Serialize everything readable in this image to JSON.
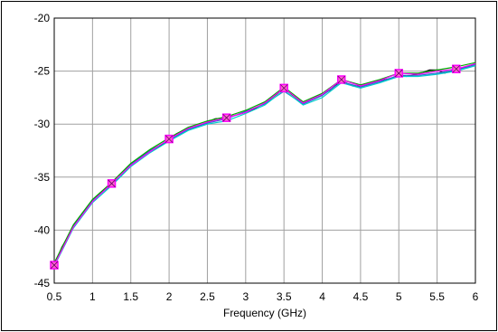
{
  "chart_data": {
    "type": "line",
    "xlabel": "Frequency (GHz)",
    "ylabel": "",
    "xlim": [
      0.5,
      6
    ],
    "ylim": [
      -45,
      -20
    ],
    "xticks": [
      "0.5",
      "1",
      "1.5",
      "2",
      "2.5",
      "3",
      "3.5",
      "4",
      "4.5",
      "5",
      "5.5",
      "6"
    ],
    "yticks": [
      "-20",
      "-25",
      "-30",
      "-35",
      "-40",
      "-45"
    ],
    "grid": true,
    "legend": "none",
    "series": [
      {
        "color": "#000000",
        "marker": "none",
        "x": [
          0.5,
          0.6,
          0.75,
          0.9,
          1.0,
          1.1,
          1.25,
          1.4,
          1.5,
          1.6,
          1.75,
          1.9,
          2.0,
          2.1,
          2.25,
          2.4,
          2.5,
          2.6,
          2.75,
          2.9,
          3.0,
          3.1,
          3.25,
          3.4,
          3.5,
          3.6,
          3.75,
          3.9,
          4.0,
          4.1,
          4.25,
          4.4,
          4.5,
          4.6,
          4.75,
          4.9,
          5.0,
          5.1,
          5.25,
          5.4,
          5.5,
          5.6,
          5.75,
          5.9,
          6.0
        ],
        "y": [
          -43.3,
          -41.6,
          -39.7,
          -38.2,
          -37.3,
          -36.5,
          -35.6,
          -34.6,
          -33.9,
          -33.4,
          -32.6,
          -32.0,
          -31.4,
          -30.9,
          -30.4,
          -30.1,
          -29.8,
          -29.5,
          -29.4,
          -29.1,
          -28.9,
          -28.6,
          -28.0,
          -27.2,
          -26.6,
          -27.2,
          -28.0,
          -27.6,
          -27.2,
          -26.8,
          -25.9,
          -26.4,
          -26.4,
          -26.2,
          -25.9,
          -25.7,
          -25.3,
          -25.5,
          -25.3,
          -24.9,
          -24.9,
          -25.2,
          -24.8,
          -24.6,
          -24.3
        ]
      },
      {
        "color": "#3366cc",
        "marker": "none",
        "x": [
          0.5,
          0.75,
          1.0,
          1.25,
          1.5,
          1.75,
          2.0,
          2.25,
          2.5,
          2.75,
          3.0,
          3.25,
          3.5,
          3.75,
          4.0,
          4.25,
          4.5,
          4.75,
          5.0,
          5.25,
          5.5,
          5.75,
          6.0
        ],
        "y": [
          -43.2,
          -39.6,
          -37.2,
          -35.7,
          -33.8,
          -32.5,
          -31.5,
          -30.5,
          -29.9,
          -29.5,
          -28.8,
          -28.1,
          -26.9,
          -28.1,
          -27.3,
          -26.0,
          -26.5,
          -26.0,
          -25.4,
          -25.4,
          -25.2,
          -24.9,
          -24.4
        ]
      },
      {
        "color": "#00cccc",
        "marker": "none",
        "x": [
          0.5,
          0.75,
          1.0,
          1.25,
          1.5,
          1.75,
          2.0,
          2.25,
          2.5,
          2.75,
          3.0,
          3.25,
          3.5,
          3.75,
          4.0,
          4.25,
          4.5,
          4.75,
          5.0,
          5.25,
          5.5,
          5.75,
          6.0
        ],
        "y": [
          -43.4,
          -39.8,
          -37.4,
          -35.8,
          -34.0,
          -32.7,
          -31.6,
          -30.6,
          -30.0,
          -29.7,
          -29.0,
          -28.2,
          -26.8,
          -28.2,
          -27.5,
          -26.1,
          -26.6,
          -26.1,
          -25.5,
          -25.5,
          -25.3,
          -25.0,
          -24.5
        ]
      },
      {
        "color": "#00aa00",
        "marker": "none",
        "x": [
          0.5,
          0.75,
          1.0,
          1.25,
          1.5,
          1.75,
          2.0,
          2.25,
          2.5,
          2.75,
          3.0,
          3.25,
          3.5,
          3.75,
          4.0,
          4.25,
          4.5,
          4.75,
          5.0,
          5.25,
          5.5,
          5.75,
          6.0
        ],
        "y": [
          -43.1,
          -39.5,
          -37.1,
          -35.5,
          -33.7,
          -32.4,
          -31.3,
          -30.3,
          -29.7,
          -29.3,
          -28.7,
          -27.9,
          -26.5,
          -27.9,
          -27.1,
          -25.8,
          -26.3,
          -25.8,
          -25.2,
          -25.2,
          -24.9,
          -24.6,
          -24.2
        ]
      },
      {
        "color": "#ff00ff",
        "marker": "square",
        "x": [
          0.5,
          0.75,
          1.0,
          1.25,
          1.5,
          1.75,
          2.0,
          2.25,
          2.5,
          2.75,
          3.0,
          3.25,
          3.5,
          3.75,
          4.0,
          4.25,
          4.5,
          4.75,
          5.0,
          5.25,
          5.5,
          5.75,
          6.0
        ],
        "y": [
          -43.3,
          -39.7,
          -37.3,
          -35.6,
          -33.9,
          -32.6,
          -31.4,
          -30.4,
          -29.8,
          -29.4,
          -28.9,
          -28.0,
          -26.6,
          -28.0,
          -27.2,
          -25.8,
          -26.4,
          -25.9,
          -25.2,
          -25.3,
          -25.0,
          -24.8,
          -24.3
        ]
      }
    ],
    "marker_x": [
      0.5,
      1.25,
      2.0,
      2.75,
      3.5,
      4.25,
      5.0,
      5.75
    ]
  }
}
